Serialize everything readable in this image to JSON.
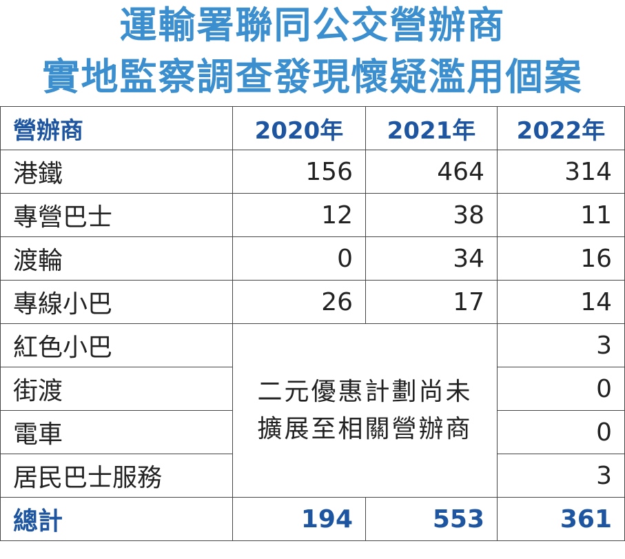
{
  "chart_data": {
    "type": "table",
    "title": [
      "運輸署聯同公交營辦商",
      "實地監察調查發現懷疑濫用個案"
    ],
    "columns": [
      "營辦商",
      "2020年",
      "2021年",
      "2022年"
    ],
    "rows": [
      {
        "name": "港鐵",
        "values": [
          "156",
          "464",
          "314"
        ]
      },
      {
        "name": "專營巴士",
        "values": [
          "12",
          "38",
          "11"
        ]
      },
      {
        "name": "渡輪",
        "values": [
          "0",
          "34",
          "16"
        ]
      },
      {
        "name": "專線小巴",
        "values": [
          "26",
          "17",
          "14"
        ]
      },
      {
        "name": "紅色小巴",
        "values": [
          "3"
        ]
      },
      {
        "name": "街渡",
        "values": [
          "0"
        ]
      },
      {
        "name": "電車",
        "values": [
          "0"
        ]
      },
      {
        "name": "居民巴士服務",
        "values": [
          "3"
        ]
      }
    ],
    "merged_note": [
      "二元優惠計劃尚未",
      "擴展至相關營辦商"
    ],
    "total": {
      "name": "總計",
      "values": [
        "194",
        "553",
        "361"
      ]
    }
  },
  "colors": {
    "title": "#3b8fce",
    "header": "#1d55a0",
    "text": "#222222",
    "border": "#444444"
  }
}
